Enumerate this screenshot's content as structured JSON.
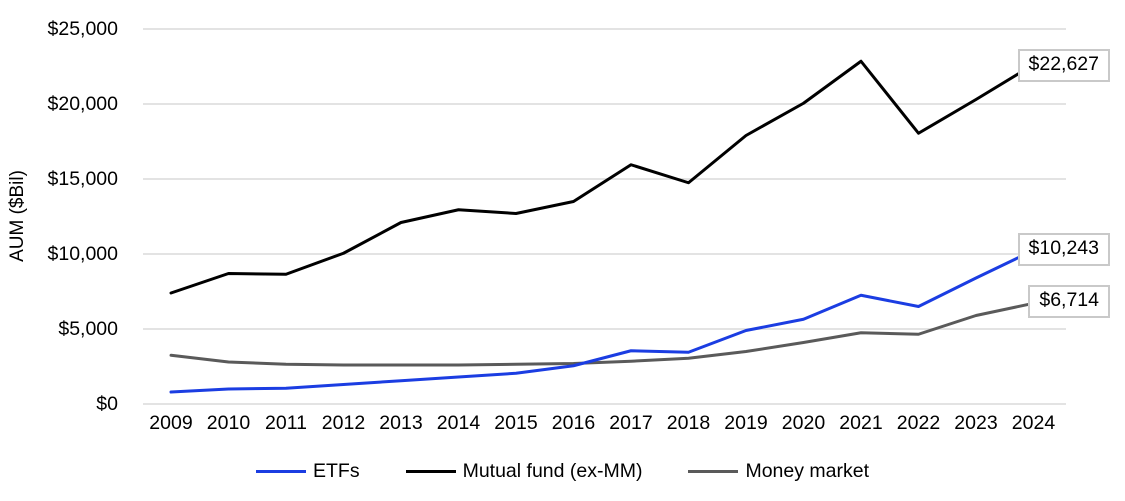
{
  "chart": {
    "y_axis": {
      "title": "AUM ($Bil)",
      "ticks": [
        "$25,000",
        "$20,000",
        "$15,000",
        "$10,000",
        "$5,000",
        "$0"
      ]
    },
    "x_axis": {
      "ticks": [
        "2009",
        "2010",
        "2011",
        "2012",
        "2013",
        "2014",
        "2015",
        "2016",
        "2017",
        "2018",
        "2019",
        "2020",
        "2021",
        "2022",
        "2023",
        "2024"
      ]
    },
    "legend": [
      {
        "label": "ETFs",
        "color": "#1b3de2"
      },
      {
        "label": "Mutual fund (ex-MM)",
        "color": "#000000"
      },
      {
        "label": "Money market",
        "color": "#5a5a5a"
      }
    ],
    "end_labels": [
      {
        "text": "$22,627"
      },
      {
        "text": "$10,243"
      },
      {
        "text": "$6,714"
      }
    ],
    "colors": {
      "gridline": "#e3e3e3",
      "etf_blue": "#1b3de2",
      "mutual_fund_black": "#000000",
      "money_market_gray": "#5a5a5a"
    }
  },
  "chart_data": {
    "type": "line",
    "x": [
      2009,
      2010,
      2011,
      2012,
      2013,
      2014,
      2015,
      2016,
      2017,
      2018,
      2019,
      2020,
      2021,
      2022,
      2023,
      2024
    ],
    "series": [
      {
        "name": "Money market",
        "color": "#5a5a5a",
        "values": [
          3250,
          2800,
          2650,
          2600,
          2600,
          2600,
          2650,
          2700,
          2850,
          3050,
          3500,
          4100,
          4750,
          4650,
          5900,
          6714
        ]
      },
      {
        "name": "ETFs",
        "color": "#1b3de2",
        "values": [
          800,
          1000,
          1050,
          1300,
          1550,
          1800,
          2050,
          2550,
          3550,
          3450,
          4900,
          5650,
          7250,
          6500,
          8400,
          10243
        ]
      },
      {
        "name": "Mutual fund (ex-MM)",
        "color": "#000000",
        "values": [
          7400,
          8700,
          8650,
          10050,
          12100,
          12950,
          12700,
          13500,
          15950,
          14750,
          17900,
          20050,
          22850,
          18050,
          20300,
          22627
        ]
      }
    ],
    "title": "",
    "xlabel": "",
    "ylabel": "AUM ($Bil)",
    "ylim": [
      0,
      25000
    ],
    "grid": true,
    "legend_position": "bottom",
    "end_labels": {
      "Mutual fund (ex-MM)": "$22,627",
      "ETFs": "$10,243",
      "Money market": "$6,714"
    }
  }
}
